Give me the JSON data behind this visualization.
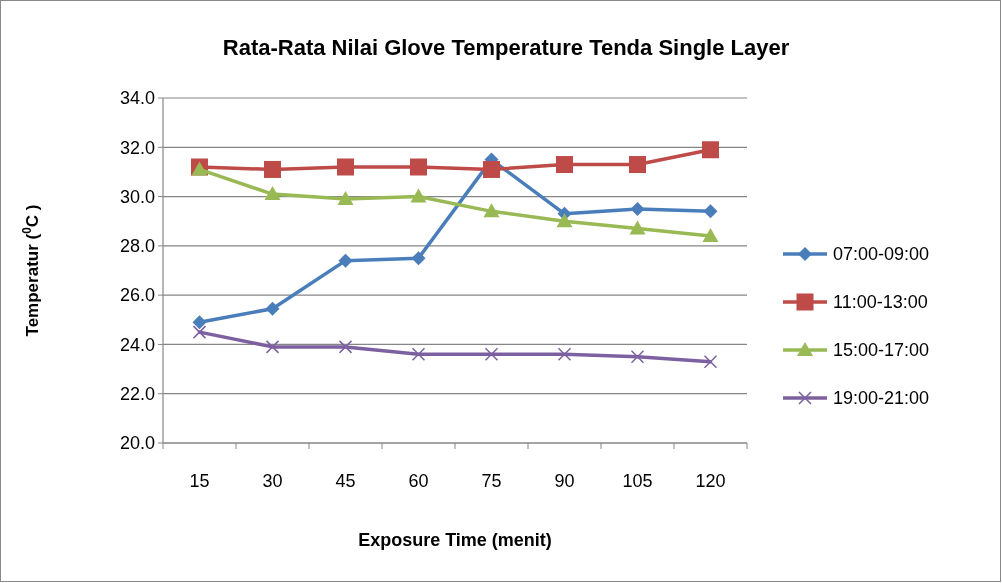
{
  "chart_data": {
    "type": "line",
    "title": "Rata-Rata Nilai Glove Temperature Tenda Single Layer",
    "xlabel": "Exposure Time (menit)",
    "ylabel": "Temperatur ($^{0}$C )",
    "categories": [
      "15",
      "30",
      "45",
      "60",
      "75",
      "90",
      "105",
      "120"
    ],
    "ylim": [
      20,
      34
    ],
    "yticks": [
      {
        "value": 20,
        "label": "20.0"
      },
      {
        "value": 22,
        "label": "22.0"
      },
      {
        "value": 24,
        "label": "24.0"
      },
      {
        "value": 26,
        "label": "26.0"
      },
      {
        "value": 28,
        "label": "28.0"
      },
      {
        "value": 30,
        "label": "30.0"
      },
      {
        "value": 32,
        "label": "32.0"
      },
      {
        "value": 34,
        "label": "34.0"
      }
    ],
    "grid": "y",
    "legend": "right",
    "series": [
      {
        "name": "07:00-09:00",
        "color": "#4a7ebb",
        "marker": "diamond",
        "values": [
          24.9,
          25.45,
          27.4,
          27.5,
          31.5,
          29.3,
          29.5,
          29.4
        ]
      },
      {
        "name": "11:00-13:00",
        "color": "#be4b48",
        "marker": "square",
        "values": [
          31.2,
          31.1,
          31.2,
          31.2,
          31.1,
          31.3,
          31.3,
          31.9
        ]
      },
      {
        "name": "15:00-17:00",
        "color": "#98b954",
        "marker": "triangle",
        "values": [
          31.1,
          30.1,
          29.9,
          30.0,
          29.4,
          29.0,
          28.7,
          28.4
        ]
      },
      {
        "name": "19:00-21:00",
        "color": "#7d60a0",
        "marker": "cross",
        "values": [
          24.5,
          23.9,
          23.9,
          23.6,
          23.6,
          23.6,
          23.5,
          23.3
        ]
      }
    ]
  }
}
